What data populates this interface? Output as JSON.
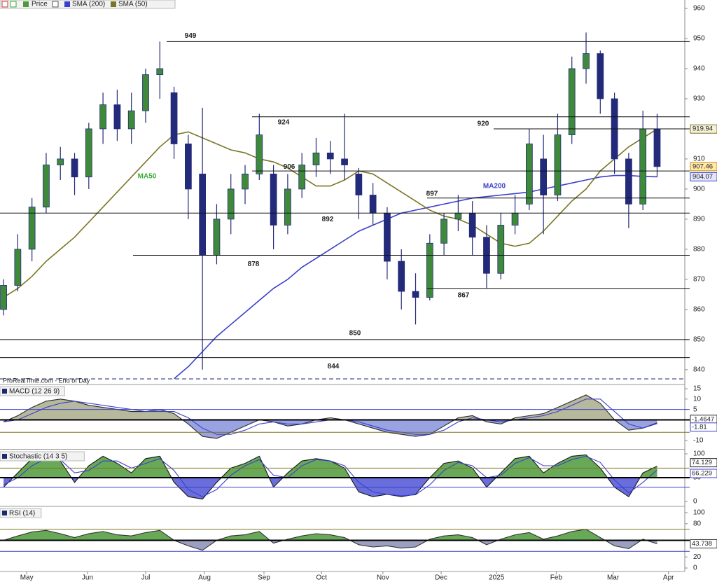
{
  "chart_data": [
    {
      "type": "candlestick",
      "source": "ProRealTime.com - End of Day",
      "name": "Price",
      "color": "#232a7a",
      "categories": [
        null,
        null,
        null,
        null,
        null,
        null,
        null,
        null,
        null,
        null,
        null,
        null,
        null,
        null,
        null,
        null,
        null,
        null,
        null,
        null,
        null,
        null,
        null,
        null,
        null,
        null,
        null,
        null,
        null,
        null,
        null,
        null,
        null,
        null,
        null,
        null,
        null,
        null,
        null,
        null,
        null,
        null,
        null,
        null,
        null,
        null,
        null
      ],
      "open": [
        860,
        868,
        880,
        894,
        908,
        910,
        904,
        920,
        928,
        920,
        926,
        938,
        932,
        915,
        905,
        878,
        890,
        900,
        905,
        905,
        888,
        900,
        908,
        912,
        910,
        905,
        898,
        892,
        876,
        866,
        864,
        882,
        890,
        892,
        884,
        872,
        888,
        895,
        910,
        898,
        918,
        940,
        945,
        930,
        910,
        895,
        920
      ],
      "high": [
        870,
        885,
        897,
        912,
        914,
        912,
        922,
        932,
        933,
        932,
        940,
        949,
        934,
        918,
        927,
        895,
        905,
        908,
        925,
        908,
        905,
        912,
        917,
        916,
        925,
        907,
        902,
        894,
        880,
        872,
        885,
        892,
        898,
        896,
        888,
        892,
        898,
        920,
        918,
        925,
        944,
        952,
        946,
        932,
        912,
        926,
        925
      ],
      "low": [
        858,
        866,
        876,
        892,
        903,
        898,
        900,
        915,
        916,
        915,
        922,
        930,
        910,
        890,
        840,
        875,
        885,
        895,
        903,
        880,
        885,
        897,
        904,
        905,
        903,
        890,
        888,
        870,
        860,
        855,
        863,
        878,
        886,
        878,
        867,
        870,
        885,
        893,
        885,
        896,
        915,
        935,
        925,
        905,
        887,
        893,
        904
      ],
      "close": [
        868,
        880,
        894,
        908,
        910,
        904,
        920,
        928,
        920,
        926,
        938,
        940,
        915,
        900,
        878,
        890,
        900,
        905,
        918,
        888,
        900,
        908,
        912,
        910,
        908,
        898,
        892,
        876,
        866,
        864,
        882,
        890,
        892,
        884,
        872,
        888,
        892,
        915,
        898,
        918,
        940,
        945,
        930,
        910,
        895,
        920,
        907.46
      ],
      "series": [
        {
          "name": "SMA (200)",
          "color": "#3b3fce",
          "values": [
            null,
            null,
            null,
            null,
            null,
            null,
            null,
            null,
            null,
            null,
            null,
            null,
            837,
            841,
            846,
            851,
            855,
            859,
            863,
            867,
            870,
            874,
            877,
            880,
            883,
            886,
            888,
            890,
            892,
            893,
            894,
            895,
            896,
            897,
            897.5,
            898,
            898.5,
            899,
            900,
            901,
            902,
            903,
            904,
            904.5,
            904.5,
            904.2,
            904.07
          ]
        },
        {
          "name": "SMA (50)",
          "color": "#7b7624",
          "values": [
            864,
            867,
            871,
            876,
            880,
            884,
            889,
            894,
            899,
            904,
            909,
            914,
            918,
            919,
            917,
            915,
            913,
            912,
            910,
            909,
            907,
            904,
            901,
            901,
            903,
            906,
            905,
            902,
            899,
            896,
            893,
            891,
            890,
            888,
            885,
            882,
            881,
            882,
            886,
            891,
            896,
            900,
            906,
            910,
            914,
            917,
            919.94
          ]
        }
      ],
      "annotations": [
        {
          "text": "MA50",
          "color": "#3aaa35"
        },
        {
          "text": "MA200",
          "color": "#3b3fce"
        }
      ],
      "levels": [
        949,
        924,
        920,
        906,
        897,
        892,
        878,
        867,
        850,
        844
      ],
      "xlim": [
        -0.25,
        47.8
      ],
      "xticks": [
        {
          "value": 1.63,
          "label": "May"
        },
        {
          "value": 5.91,
          "label": "Jun"
        },
        {
          "value": 10.0,
          "label": "Jul"
        },
        {
          "value": 14.14,
          "label": "Aug"
        },
        {
          "value": 18.33,
          "label": "Sep"
        },
        {
          "value": 22.38,
          "label": "Oct"
        },
        {
          "value": 26.7,
          "label": "Nov"
        },
        {
          "value": 30.8,
          "label": "Dec"
        },
        {
          "value": 34.7,
          "label": "2025"
        },
        {
          "value": 38.9,
          "label": "Feb"
        },
        {
          "value": 42.9,
          "label": "Mar"
        },
        {
          "value": 46.8,
          "label": "Apr"
        }
      ],
      "ylim": [
        835.3,
        962.8
      ],
      "yticks": [
        960,
        950,
        940,
        930,
        920,
        910,
        900,
        890,
        880,
        870,
        860,
        850,
        840
      ]
    },
    {
      "type": "line",
      "title": "MACD (12 26 9)",
      "fill_up": "#a9ad8b",
      "fill_down": "#8893dd",
      "series": [
        {
          "color": "#2a2a2a",
          "values": [
            -1,
            2,
            6,
            9,
            10,
            9,
            7,
            6,
            5,
            4,
            4,
            5,
            3,
            -2,
            -8,
            -9,
            -6,
            -3,
            0,
            -1,
            -3,
            -2,
            0,
            1,
            0,
            -2,
            -4,
            -6,
            -7,
            -8,
            -7,
            -3,
            1,
            2,
            -1,
            -2,
            1,
            2,
            3,
            6,
            9,
            12,
            8,
            0,
            -5,
            -4,
            -1.4647
          ]
        },
        {
          "color": "#3b3fce",
          "values": [
            -1,
            0,
            3,
            6,
            8,
            9,
            8,
            7,
            6,
            5,
            4,
            4,
            4,
            1,
            -4,
            -7,
            -7,
            -5,
            -2,
            -1,
            -2,
            -2,
            -1,
            0,
            0,
            -1,
            -3,
            -5,
            -6,
            -7,
            -7,
            -5,
            -1,
            1,
            0,
            -1,
            0,
            1,
            2,
            4,
            7,
            10,
            10,
            4,
            -2,
            -4,
            -1.81
          ]
        }
      ],
      "levels": [
        5,
        0,
        -6
      ],
      "level_colors": [
        "#3b3fce",
        "#000000",
        "#7b7624"
      ],
      "ylim": [
        -13.7,
        16.7
      ],
      "yticks": [
        15,
        10,
        5,
        -10
      ]
    },
    {
      "type": "line",
      "title": "Stochastic (14 3 5)",
      "fill_up": "#4c9a3a",
      "fill_down": "#4f55d6",
      "series": [
        {
          "color": "#1a1a1a",
          "values": [
            30,
            60,
            90,
            95,
            85,
            40,
            75,
            95,
            80,
            60,
            90,
            95,
            40,
            10,
            5,
            40,
            70,
            80,
            95,
            30,
            60,
            85,
            90,
            85,
            70,
            20,
            10,
            15,
            10,
            15,
            50,
            80,
            85,
            70,
            30,
            60,
            90,
            95,
            60,
            80,
            95,
            98,
            70,
            30,
            10,
            60,
            74.129
          ]
        },
        {
          "color": "#3b3fce",
          "values": [
            35,
            50,
            75,
            90,
            88,
            60,
            65,
            85,
            85,
            70,
            80,
            90,
            65,
            25,
            10,
            25,
            55,
            75,
            88,
            55,
            50,
            75,
            88,
            85,
            75,
            40,
            20,
            15,
            12,
            14,
            35,
            65,
            82,
            75,
            50,
            55,
            80,
            92,
            75,
            75,
            88,
            95,
            82,
            45,
            18,
            40,
            66.229
          ]
        }
      ],
      "levels": [
        70,
        50,
        30
      ],
      "level_colors": [
        "#7b7624",
        "#000000",
        "#3b3fce"
      ],
      "ylim": [
        -8.8,
        107.4
      ],
      "yticks": [
        100,
        50,
        0
      ]
    },
    {
      "type": "line",
      "title": "RSI (14)",
      "fill_up": "#4c9a3a",
      "fill_down": "#8a8fb5",
      "series": [
        {
          "color": "#333333",
          "values": [
            50,
            58,
            65,
            68,
            62,
            55,
            62,
            66,
            60,
            58,
            64,
            68,
            50,
            40,
            32,
            50,
            58,
            60,
            66,
            45,
            52,
            58,
            62,
            60,
            55,
            42,
            38,
            40,
            36,
            38,
            52,
            58,
            60,
            55,
            42,
            52,
            60,
            64,
            52,
            58,
            66,
            70,
            55,
            40,
            35,
            52,
            43.738
          ]
        }
      ],
      "levels": [
        70,
        50,
        30
      ],
      "level_colors": [
        "#7b7624",
        "#000000",
        "#3b3fce"
      ],
      "ylim": [
        -6.3,
        110.1
      ],
      "yticks": [
        100,
        80,
        20,
        0
      ]
    }
  ]
}
